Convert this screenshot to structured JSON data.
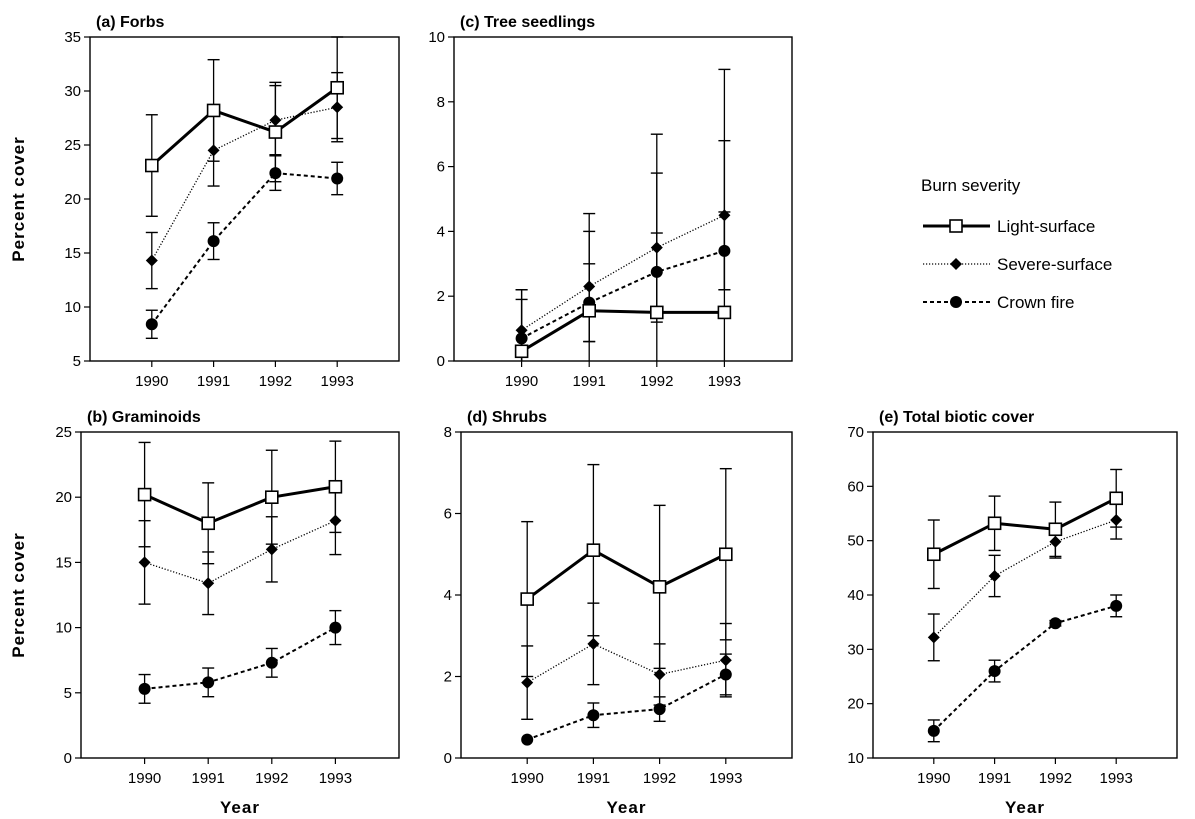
{
  "legend": {
    "title": "Burn severity",
    "entries": [
      {
        "name": "Light-surface",
        "key": "light"
      },
      {
        "name": "Severe-surface",
        "key": "severe"
      },
      {
        "name": "Crown fire",
        "key": "crown"
      }
    ]
  },
  "chart_data": [
    {
      "id": "a",
      "type": "line",
      "title": "(a)  Forbs",
      "xlabel": "",
      "ylabel": "Percent  cover",
      "x": [
        1990,
        1991,
        1992,
        1993
      ],
      "xticks": [
        "1990",
        "1991",
        "1992",
        "1993"
      ],
      "ylim": [
        5,
        35
      ],
      "yticks": [
        5,
        10,
        15,
        20,
        25,
        30,
        35
      ],
      "series": [
        {
          "name": "Light-surface",
          "key": "light",
          "values": [
            23.1,
            28.2,
            26.2,
            30.3
          ],
          "err": [
            4.7,
            4.7,
            4.6,
            4.7
          ]
        },
        {
          "name": "Severe-surface",
          "key": "severe",
          "values": [
            14.3,
            24.5,
            27.3,
            28.5
          ],
          "err": [
            2.6,
            3.3,
            3.2,
            3.2
          ]
        },
        {
          "name": "Crown fire",
          "key": "crown",
          "values": [
            8.4,
            16.1,
            22.4,
            21.9
          ],
          "err": [
            1.3,
            1.7,
            1.6,
            1.5
          ]
        }
      ]
    },
    {
      "id": "c",
      "type": "line",
      "title": "(c)  Tree  seedlings",
      "xlabel": "",
      "ylabel": "",
      "x": [
        1990,
        1991,
        1992,
        1993
      ],
      "xticks": [
        "1990",
        "1991",
        "1992",
        "1993"
      ],
      "ylim": [
        0,
        10
      ],
      "yticks": [
        0,
        2,
        4,
        6,
        8,
        10
      ],
      "series": [
        {
          "name": "Light-surface",
          "key": "light",
          "values": [
            0.3,
            1.55,
            1.5,
            1.5
          ],
          "err": [
            1.9,
            3.0,
            5.5,
            7.5
          ]
        },
        {
          "name": "Severe-surface",
          "key": "severe",
          "values": [
            0.95,
            2.3,
            3.5,
            4.5
          ],
          "err": [
            1.25,
            1.7,
            2.3,
            2.3
          ]
        },
        {
          "name": "Crown fire",
          "key": "crown",
          "values": [
            0.7,
            1.8,
            2.75,
            3.4
          ],
          "err": [
            1.2,
            1.2,
            1.2,
            1.2
          ]
        }
      ]
    },
    {
      "id": "b",
      "type": "line",
      "title": "(b)  Graminoids",
      "xlabel": "Year",
      "ylabel": "Percent  cover",
      "x": [
        1990,
        1991,
        1992,
        1993
      ],
      "xticks": [
        "1990",
        "1991",
        "1992",
        "1993"
      ],
      "ylim": [
        0,
        25
      ],
      "yticks": [
        0,
        5,
        10,
        15,
        20,
        25
      ],
      "series": [
        {
          "name": "Light-surface",
          "key": "light",
          "values": [
            20.2,
            18.0,
            20.0,
            20.8
          ],
          "err": [
            4.0,
            3.1,
            3.6,
            3.5
          ]
        },
        {
          "name": "Severe-surface",
          "key": "severe",
          "values": [
            15.0,
            13.4,
            16.0,
            18.2
          ],
          "err": [
            3.2,
            2.4,
            2.5,
            2.6
          ]
        },
        {
          "name": "Crown fire",
          "key": "crown",
          "values": [
            5.3,
            5.8,
            7.3,
            10.0
          ],
          "err": [
            1.1,
            1.1,
            1.1,
            1.3
          ]
        }
      ]
    },
    {
      "id": "d",
      "type": "line",
      "title": "(d)  Shrubs",
      "xlabel": "Year",
      "ylabel": "",
      "x": [
        1990,
        1991,
        1992,
        1993
      ],
      "xticks": [
        "1990",
        "1991",
        "1992",
        "1993"
      ],
      "ylim": [
        0,
        8
      ],
      "yticks": [
        0,
        2,
        4,
        6,
        8
      ],
      "series": [
        {
          "name": "Light-surface",
          "key": "light",
          "values": [
            3.9,
            5.1,
            4.2,
            5.0
          ],
          "err": [
            1.9,
            2.1,
            2.0,
            2.1
          ]
        },
        {
          "name": "Severe-surface",
          "key": "severe",
          "values": [
            1.85,
            2.8,
            2.05,
            2.4
          ],
          "err": [
            0.9,
            1.0,
            0.75,
            0.9
          ]
        },
        {
          "name": "Crown fire",
          "key": "crown",
          "values": [
            0.45,
            1.05,
            1.2,
            2.05
          ],
          "err": [
            0.0,
            0.3,
            0.3,
            0.5
          ]
        }
      ]
    },
    {
      "id": "e",
      "type": "line",
      "title": "(e)  Total  biotic  cover",
      "xlabel": "Year",
      "ylabel": "",
      "x": [
        1990,
        1991,
        1992,
        1993
      ],
      "xticks": [
        "1990",
        "1991",
        "1992",
        "1993"
      ],
      "ylim": [
        10,
        70
      ],
      "yticks": [
        10,
        20,
        30,
        40,
        50,
        60,
        70
      ],
      "series": [
        {
          "name": "Light-surface",
          "key": "light",
          "values": [
            47.5,
            53.2,
            52.1,
            57.8
          ],
          "err": [
            6.3,
            5.0,
            5.0,
            5.3
          ]
        },
        {
          "name": "Severe-surface",
          "key": "severe",
          "values": [
            32.2,
            43.5,
            49.8,
            53.8
          ],
          "err": [
            4.3,
            3.8,
            3.0,
            3.5
          ]
        },
        {
          "name": "Crown fire",
          "key": "crown",
          "values": [
            15.0,
            26.0,
            34.8,
            38.0
          ],
          "err": [
            2.0,
            2.0,
            0.5,
            2.0
          ]
        }
      ]
    }
  ]
}
